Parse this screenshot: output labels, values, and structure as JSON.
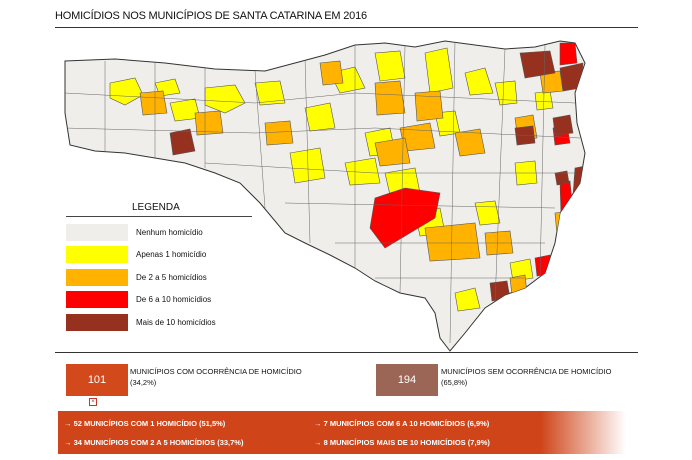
{
  "title": "HOMICÍDIOS NOS MUNICÍPIOS DE SANTA CATARINA EM 2016",
  "colors": {
    "none": "#efeeea",
    "one": "#ffff00",
    "two_to_five": "#ffb300",
    "six_to_ten": "#ff0000",
    "over_ten": "#963120",
    "with_occurrence": "#d24a1b",
    "without_occurrence": "#9b6655"
  },
  "legend": {
    "title": "LEGENDA",
    "items": [
      {
        "label": "Nenhum homicídio",
        "color": "#efeeea"
      },
      {
        "label": "Apenas 1 homicídio",
        "color": "#ffff00"
      },
      {
        "label": "De 2 a 5 homicídios",
        "color": "#ffb300"
      },
      {
        "label": "De 6 a 10 homicídios",
        "color": "#ff0000"
      },
      {
        "label": "Mais de 10 homicídios",
        "color": "#963120"
      }
    ]
  },
  "summary": {
    "with": {
      "count": "101",
      "label": "MUNICÍPIOS COM OCORRÊNCIA DE HOMICÍDIO",
      "percent": "(34,2%)"
    },
    "without": {
      "count": "194",
      "label": "MUNICÍPIOS SEM OCORRÊNCIA DE HOMICÍDIO",
      "percent": "(65,8%)"
    }
  },
  "breakdown": [
    "→ 52 MUNICÍPIOS COM 1 HOMICÍDIO (51,5%)",
    "→ 7 MUNICÍPIOS COM 6 A 10 HOMICÍDIOS (6,9%)",
    "→ 34 MUNICÍPIOS COM 2 A 5 HOMICÍDIOS (33,7%)",
    "→ 8 MUNICÍPIOS MAIS DE 10 HOMICÍDIOS (7,9%)"
  ]
}
